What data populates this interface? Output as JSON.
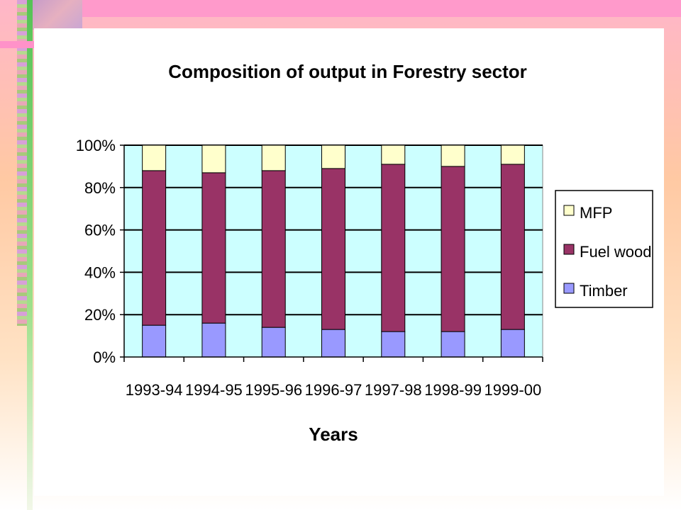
{
  "chart_data": {
    "type": "bar",
    "stacked": true,
    "percent": true,
    "title": "Composition of output in Forestry sector",
    "xlabel": "Years",
    "ylabel": "",
    "categories": [
      "1993-94",
      "1994-95",
      "1995-96",
      "1996-97",
      "1997-98",
      "1998-99",
      "1999-00"
    ],
    "series": [
      {
        "name": "Timber",
        "color": "#9999ff",
        "values": [
          15,
          16,
          14,
          13,
          12,
          12,
          13
        ]
      },
      {
        "name": "Fuel wood",
        "color": "#993366",
        "values": [
          73,
          71,
          74,
          76,
          79,
          78,
          78
        ]
      },
      {
        "name": "MFP",
        "color": "#ffffcc",
        "values": [
          12,
          13,
          12,
          11,
          9,
          10,
          9
        ]
      }
    ],
    "legend_order": [
      "MFP",
      "Fuel wood",
      "Timber"
    ],
    "y_ticks": [
      "0%",
      "20%",
      "40%",
      "60%",
      "80%",
      "100%"
    ],
    "ylim": [
      0,
      100
    ],
    "grid": true,
    "legend_position": "right",
    "plot_background": "#ccffff"
  }
}
